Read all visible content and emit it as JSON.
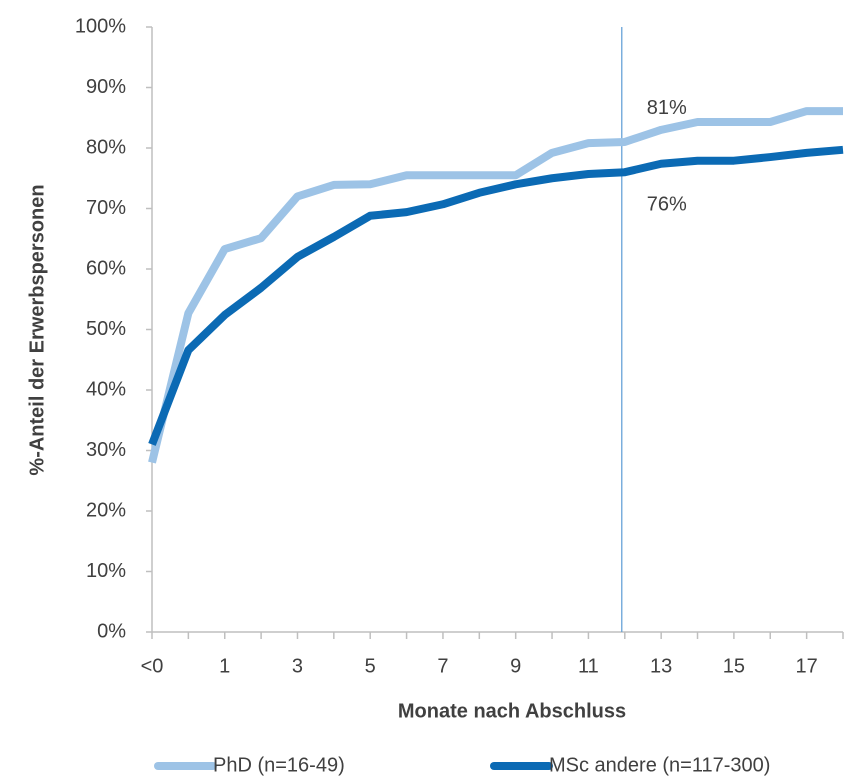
{
  "chart_data": {
    "type": "line",
    "x_label": "Monate nach Abschluss",
    "y_label": "%-Anteil der Erwerbspersonen",
    "categories": [
      "<0",
      null,
      "1",
      null,
      "3",
      null,
      "5",
      null,
      "7",
      null,
      "9",
      null,
      "11",
      null,
      "13",
      null,
      "15",
      null,
      "17",
      null
    ],
    "series": [
      {
        "name": "PhD (n=16-49)",
        "color": "#9dc3e6",
        "values": [
          28,
          52.7,
          63.3,
          65.1,
          72,
          73.9,
          74,
          75.5,
          75.5,
          75.5,
          75.5,
          79.2,
          80.8,
          81,
          83,
          84.3,
          84.3,
          84.3,
          86.1,
          86.1
        ]
      },
      {
        "name": "MSc andere (n=117-300)",
        "color": "#0b6ab4",
        "values": [
          31,
          46.6,
          52.4,
          56.9,
          62,
          65.3,
          68.8,
          69.4,
          70.7,
          72.6,
          74,
          75,
          75.7,
          76,
          77.4,
          77.9,
          77.9,
          78.5,
          79.2,
          79.7
        ]
      }
    ],
    "annotations": [
      {
        "text": "81%",
        "series": 0,
        "index": 13
      },
      {
        "text": "76%",
        "series": 1,
        "index": 13
      }
    ],
    "reference_line_index": 13,
    "ylim": [
      0,
      100
    ],
    "yticks": [
      {
        "value": 0,
        "label": "0%"
      },
      {
        "value": 10,
        "label": "10%"
      },
      {
        "value": 20,
        "label": "20%"
      },
      {
        "value": 30,
        "label": "30%"
      },
      {
        "value": 40,
        "label": "40%"
      },
      {
        "value": 50,
        "label": "50%"
      },
      {
        "value": 60,
        "label": "60%"
      },
      {
        "value": 70,
        "label": "70%"
      },
      {
        "value": 80,
        "label": "80%"
      },
      {
        "value": 90,
        "label": "90%"
      },
      {
        "value": 100,
        "label": "100%"
      }
    ],
    "grid": false,
    "legend": "bottom"
  }
}
